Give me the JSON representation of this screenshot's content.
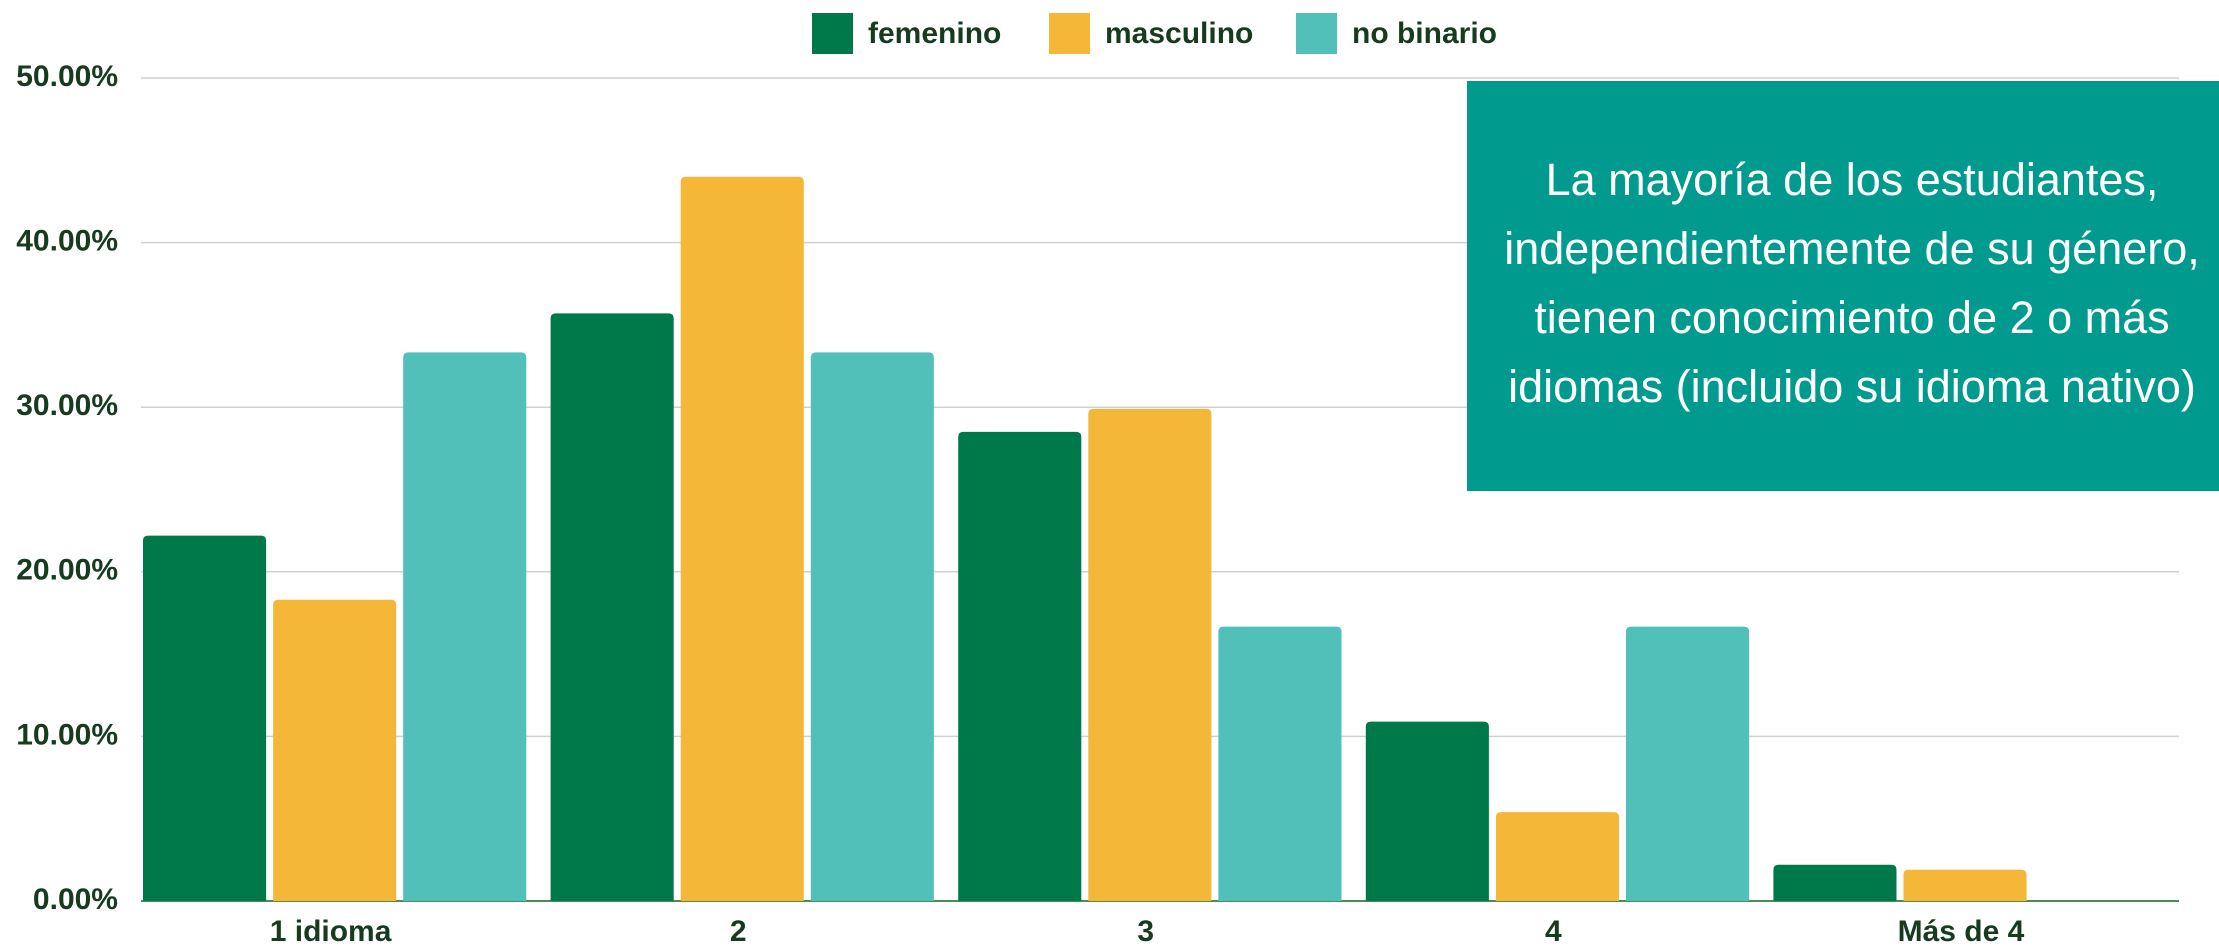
{
  "chart_data": {
    "type": "bar",
    "categories": [
      "1 idioma",
      "2",
      "3",
      "4",
      "Más de 4"
    ],
    "series": [
      {
        "name": "femenino",
        "color": "#00794a",
        "values": [
          22.2,
          35.7,
          28.5,
          10.9,
          2.2
        ]
      },
      {
        "name": "masculino",
        "color": "#f5b738",
        "values": [
          18.3,
          44.0,
          29.9,
          5.4,
          1.9
        ]
      },
      {
        "name": "no binario",
        "color": "#50c0b9",
        "values": [
          33.33,
          33.33,
          16.67,
          16.67,
          0
        ]
      }
    ],
    "ylim": [
      0,
      50
    ],
    "yticks": [
      {
        "value": 0,
        "label": "0.00%"
      },
      {
        "value": 10,
        "label": "10.00%"
      },
      {
        "value": 20,
        "label": "20.00%"
      },
      {
        "value": 30,
        "label": "30.00%"
      },
      {
        "value": 40,
        "label": "40.00%"
      },
      {
        "value": 50,
        "label": "50.00%"
      }
    ],
    "grid": true,
    "legend": "top",
    "annotation": "La mayoría de los estudiantes, independientemente de su género, tienen conocimiento de 2 o más idiomas (incluido su idioma nativo)"
  }
}
